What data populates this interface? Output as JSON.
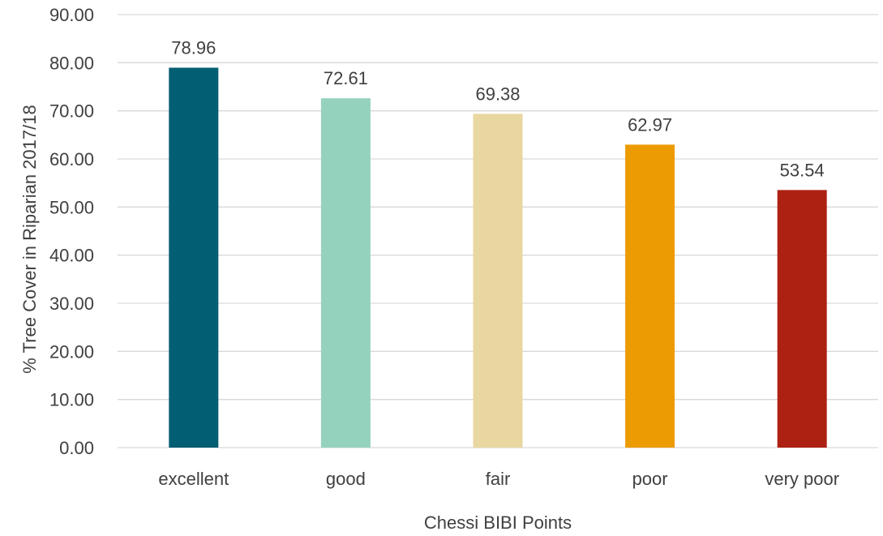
{
  "chart_data": {
    "type": "bar",
    "categories": [
      "excellent",
      "good",
      "fair",
      "poor",
      "very poor"
    ],
    "values": [
      78.96,
      72.61,
      69.38,
      62.97,
      53.54
    ],
    "data_labels": [
      "78.96",
      "72.61",
      "69.38",
      "62.97",
      "53.54"
    ],
    "colors": [
      "#025e73",
      "#95d2bd",
      "#e9d7a1",
      "#ed9b03",
      "#ad2113"
    ],
    "xlabel": "Chessi BIBI Points",
    "ylabel": "% Tree Cover in Riparian 2017/18",
    "ylim": [
      0,
      90
    ],
    "yticks": [
      0,
      10,
      20,
      30,
      40,
      50,
      60,
      70,
      80,
      90
    ],
    "ytick_labels": [
      "0.00",
      "10.00",
      "20.00",
      "30.00",
      "40.00",
      "50.00",
      "60.00",
      "70.00",
      "80.00",
      "90.00"
    ],
    "grid": true,
    "legend": "none"
  }
}
